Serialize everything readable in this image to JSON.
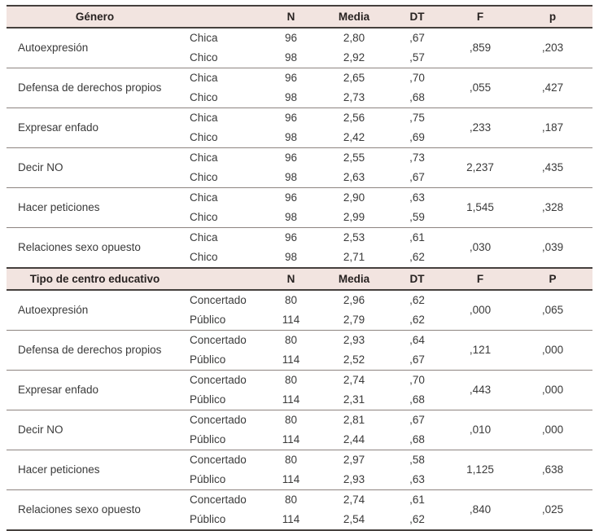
{
  "colors": {
    "header_bg": "#f2e4e0",
    "thick_border": "#45403d",
    "thin_border": "#8d8480",
    "text": "#3a3a3a",
    "header_text": "#272221"
  },
  "table": {
    "sections": [
      {
        "header": "Género",
        "columns": {
          "n": "N",
          "media": "Media",
          "dt": "DT",
          "f": "F",
          "p": "p"
        },
        "groups": [
          {
            "label": "Autoexpresión",
            "f": ",859",
            "p": ",203",
            "rows": [
              {
                "cat": "Chica",
                "n": "96",
                "media": "2,80",
                "dt": ",67"
              },
              {
                "cat": "Chico",
                "n": "98",
                "media": "2,92",
                "dt": ",57"
              }
            ]
          },
          {
            "label": "Defensa de derechos propios",
            "f": ",055",
            "p": ",427",
            "rows": [
              {
                "cat": "Chica",
                "n": "96",
                "media": "2,65",
                "dt": ",70"
              },
              {
                "cat": "Chico",
                "n": "98",
                "media": "2,73",
                "dt": ",68"
              }
            ]
          },
          {
            "label": "Expresar enfado",
            "f": ",233",
            "p": ",187",
            "rows": [
              {
                "cat": "Chica",
                "n": "96",
                "media": "2,56",
                "dt": ",75"
              },
              {
                "cat": "Chico",
                "n": "98",
                "media": "2,42",
                "dt": ",69"
              }
            ]
          },
          {
            "label": "Decir NO",
            "f": "2,237",
            "p": ",435",
            "rows": [
              {
                "cat": "Chica",
                "n": "96",
                "media": "2,55",
                "dt": ",73"
              },
              {
                "cat": "Chico",
                "n": "98",
                "media": "2,63",
                "dt": ",67"
              }
            ]
          },
          {
            "label": "Hacer peticiones",
            "f": "1,545",
            "p": ",328",
            "rows": [
              {
                "cat": "Chica",
                "n": "96",
                "media": "2,90",
                "dt": ",63"
              },
              {
                "cat": "Chico",
                "n": "98",
                "media": "2,99",
                "dt": ",59"
              }
            ]
          },
          {
            "label": "Relaciones sexo opuesto",
            "f": ",030",
            "p": ",039",
            "rows": [
              {
                "cat": "Chica",
                "n": "96",
                "media": "2,53",
                "dt": ",61"
              },
              {
                "cat": "Chico",
                "n": "98",
                "media": "2,71",
                "dt": ",62"
              }
            ]
          }
        ]
      },
      {
        "header": "Tipo de centro educativo",
        "columns": {
          "n": "N",
          "media": "Media",
          "dt": "DT",
          "f": "F",
          "p": "P"
        },
        "groups": [
          {
            "label": "Autoexpresión",
            "f": ",000",
            "p": ",065",
            "rows": [
              {
                "cat": "Concertado",
                "n": "80",
                "media": "2,96",
                "dt": ",62"
              },
              {
                "cat": "Público",
                "n": "114",
                "media": "2,79",
                "dt": ",62"
              }
            ]
          },
          {
            "label": "Defensa de derechos propios",
            "f": ",121",
            "p": ",000",
            "rows": [
              {
                "cat": "Concertado",
                "n": "80",
                "media": "2,93",
                "dt": ",64"
              },
              {
                "cat": "Público",
                "n": "114",
                "media": "2,52",
                "dt": ",67"
              }
            ]
          },
          {
            "label": "Expresar enfado",
            "f": ",443",
            "p": ",000",
            "rows": [
              {
                "cat": "Concertado",
                "n": "80",
                "media": "2,74",
                "dt": ",70"
              },
              {
                "cat": "Público",
                "n": "114",
                "media": "2,31",
                "dt": ",68"
              }
            ]
          },
          {
            "label": "Decir NO",
            "f": ",010",
            "p": ",000",
            "rows": [
              {
                "cat": "Concertado",
                "n": "80",
                "media": "2,81",
                "dt": ",67"
              },
              {
                "cat": "Público",
                "n": "114",
                "media": "2,44",
                "dt": ",68"
              }
            ]
          },
          {
            "label": "Hacer peticiones",
            "f": "1,125",
            "p": ",638",
            "rows": [
              {
                "cat": "Concertado",
                "n": "80",
                "media": "2,97",
                "dt": ",58"
              },
              {
                "cat": "Público",
                "n": "114",
                "media": "2,93",
                "dt": ",63"
              }
            ]
          },
          {
            "label": "Relaciones sexo opuesto",
            "f": ",840",
            "p": ",025",
            "rows": [
              {
                "cat": "Concertado",
                "n": "80",
                "media": "2,74",
                "dt": ",61"
              },
              {
                "cat": "Público",
                "n": "114",
                "media": "2,54",
                "dt": ",62"
              }
            ]
          }
        ]
      }
    ]
  }
}
